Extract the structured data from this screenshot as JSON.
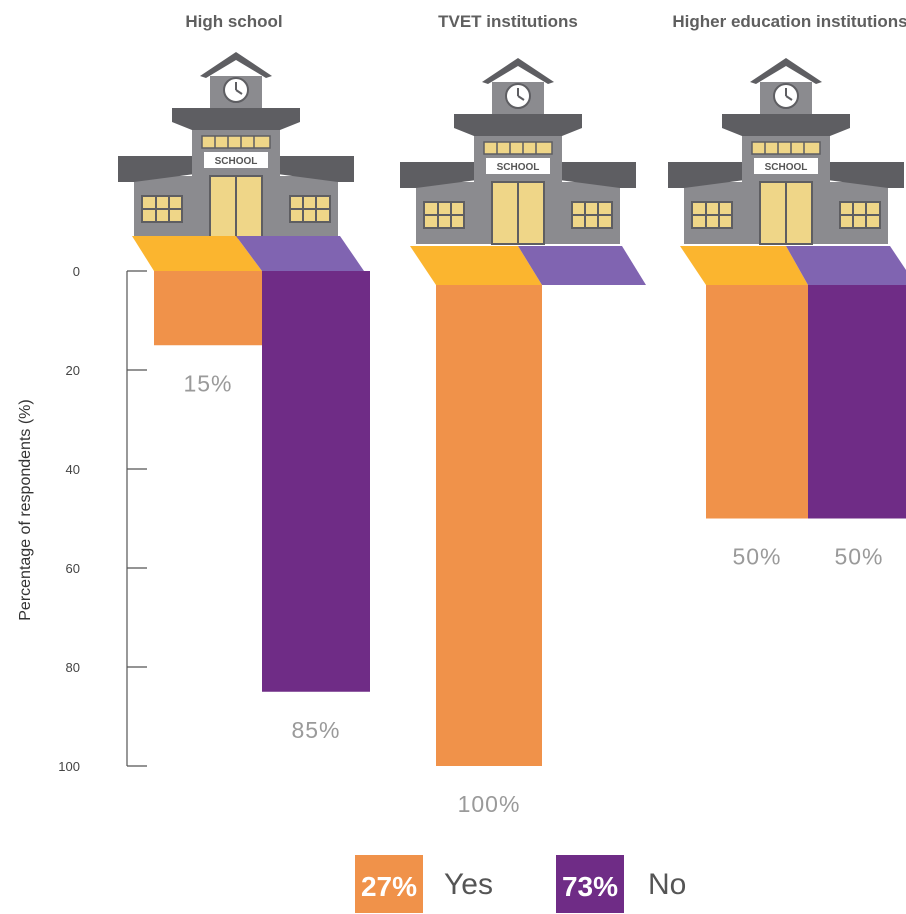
{
  "chart_data": {
    "type": "bar",
    "orientation": "downward",
    "categories": [
      "High school",
      "TVET institutions",
      "Higher education institutions"
    ],
    "series": [
      {
        "name": "Yes",
        "values": [
          15,
          100,
          50
        ],
        "color": "#F0924A"
      },
      {
        "name": "No",
        "values": [
          85,
          0,
          50
        ],
        "color": "#6F2C86"
      }
    ],
    "data_labels": [
      [
        "15%",
        "",
        "50%"
      ],
      [
        "85%",
        "",
        "50%"
      ]
    ],
    "tvet_label": "100%",
    "ylabel": "Percentage of respondents (%)",
    "yticks": [
      0,
      20,
      40,
      60,
      80,
      100
    ],
    "ylim": [
      0,
      100
    ],
    "legend": [
      {
        "pct": "27%",
        "label": "Yes",
        "color": "#F0924A"
      },
      {
        "pct": "73%",
        "label": "No",
        "color": "#6F2C86"
      }
    ],
    "legend_position": "bottom-center",
    "grid": false
  },
  "icons": {
    "building": "school-building-icon"
  },
  "school_sign": "SCHOOL",
  "colors": {
    "yes_top": "#FBB52F",
    "no_top": "#8064B1",
    "building": "#8B8B8F",
    "roof": "#5E5E62",
    "window": "#EFD688"
  }
}
